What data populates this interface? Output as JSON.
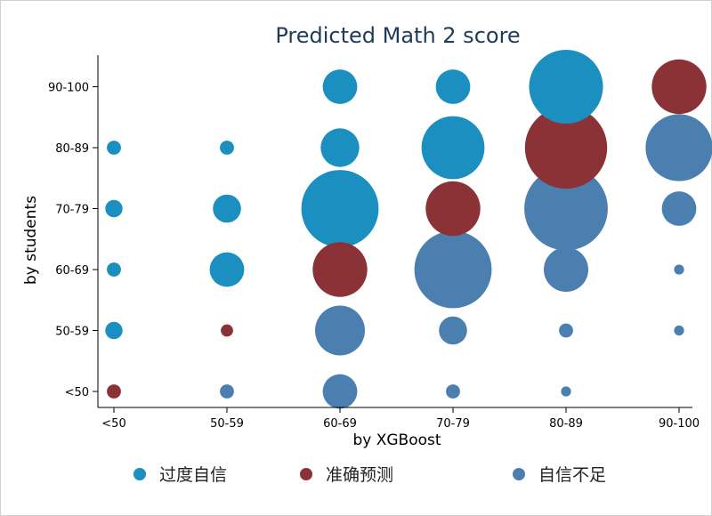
{
  "chart_data": {
    "type": "scatter",
    "title": "Predicted Math 2 score",
    "xlabel": "by XGBoost",
    "ylabel": "by students",
    "x_categories": [
      "<50",
      "50-59",
      "60-69",
      "70-79",
      "80-89",
      "90-100"
    ],
    "y_categories": [
      "<50",
      "50-59",
      "60-69",
      "70-79",
      "80-89",
      "90-100"
    ],
    "grid": false,
    "legend_position": "bottom",
    "series": [
      {
        "name": "过度自信",
        "color": "#1a8fc0",
        "points": [
          {
            "x": "<50",
            "y": "50-59",
            "size": 3
          },
          {
            "x": "<50",
            "y": "60-69",
            "size": 2
          },
          {
            "x": "<50",
            "y": "70-79",
            "size": 3
          },
          {
            "x": "<50",
            "y": "80-89",
            "size": 2
          },
          {
            "x": "50-59",
            "y": "60-69",
            "size": 12
          },
          {
            "x": "50-59",
            "y": "70-79",
            "size": 8
          },
          {
            "x": "50-59",
            "y": "80-89",
            "size": 2
          },
          {
            "x": "60-69",
            "y": "70-79",
            "size": 60
          },
          {
            "x": "60-69",
            "y": "80-89",
            "size": 15
          },
          {
            "x": "60-69",
            "y": "90-100",
            "size": 12
          },
          {
            "x": "70-79",
            "y": "80-89",
            "size": 40
          },
          {
            "x": "70-79",
            "y": "90-100",
            "size": 12
          },
          {
            "x": "80-89",
            "y": "90-100",
            "size": 55
          }
        ]
      },
      {
        "name": "准确预测",
        "color": "#8b3236",
        "points": [
          {
            "x": "<50",
            "y": "<50",
            "size": 2
          },
          {
            "x": "50-59",
            "y": "50-59",
            "size": 1.5
          },
          {
            "x": "60-69",
            "y": "60-69",
            "size": 30
          },
          {
            "x": "70-79",
            "y": "70-79",
            "size": 30
          },
          {
            "x": "80-89",
            "y": "80-89",
            "size": 68
          },
          {
            "x": "90-100",
            "y": "90-100",
            "size": 30
          }
        ]
      },
      {
        "name": "自信不足",
        "color": "#4a7fb0",
        "points": [
          {
            "x": "50-59",
            "y": "<50",
            "size": 2
          },
          {
            "x": "60-69",
            "y": "<50",
            "size": 12
          },
          {
            "x": "60-69",
            "y": "50-59",
            "size": 25
          },
          {
            "x": "70-79",
            "y": "<50",
            "size": 2
          },
          {
            "x": "70-79",
            "y": "50-59",
            "size": 8
          },
          {
            "x": "70-79",
            "y": "60-69",
            "size": 60
          },
          {
            "x": "80-89",
            "y": "<50",
            "size": 1
          },
          {
            "x": "80-89",
            "y": "50-59",
            "size": 2
          },
          {
            "x": "80-89",
            "y": "60-69",
            "size": 20
          },
          {
            "x": "80-89",
            "y": "70-79",
            "size": 70
          },
          {
            "x": "90-100",
            "y": "50-59",
            "size": 1
          },
          {
            "x": "90-100",
            "y": "60-69",
            "size": 1
          },
          {
            "x": "90-100",
            "y": "70-79",
            "size": 12
          },
          {
            "x": "90-100",
            "y": "80-89",
            "size": 45
          }
        ]
      }
    ]
  }
}
